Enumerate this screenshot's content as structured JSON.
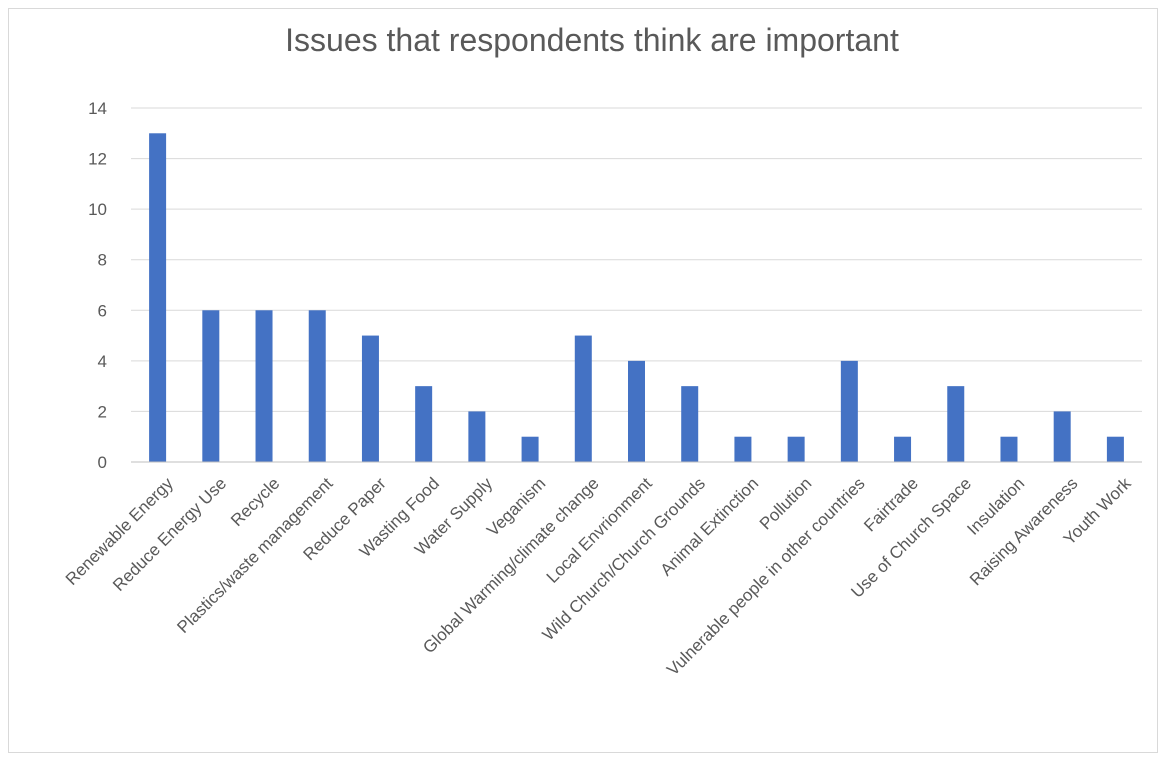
{
  "chart_data": {
    "type": "bar",
    "title": "Issues that respondents think are important",
    "xlabel": "",
    "ylabel": "",
    "ylim": [
      0,
      14
    ],
    "yticks": [
      0,
      2,
      4,
      6,
      8,
      10,
      12,
      14
    ],
    "grid": true,
    "legend": "none",
    "bar_color": "#4472c4",
    "categories": [
      "Renewable Energy",
      "Reduce Energy Use",
      "Recycle",
      "Plastics/waste management",
      "Reduce Paper",
      "Wasting Food",
      "Water Supply",
      "Veganism",
      "Global Warming/climate change",
      "Local Envrionment",
      "Wild Church/Church Grounds",
      "Animal Extinction",
      "Pollution",
      "Vulnerable people in other countries",
      "Fairtrade",
      "Use of Church Space",
      "Insulation",
      "Raising Awareness",
      "Youth Work"
    ],
    "values": [
      13,
      6,
      6,
      6,
      5,
      3,
      2,
      1,
      5,
      4,
      3,
      1,
      1,
      4,
      1,
      3,
      1,
      2,
      1
    ]
  }
}
